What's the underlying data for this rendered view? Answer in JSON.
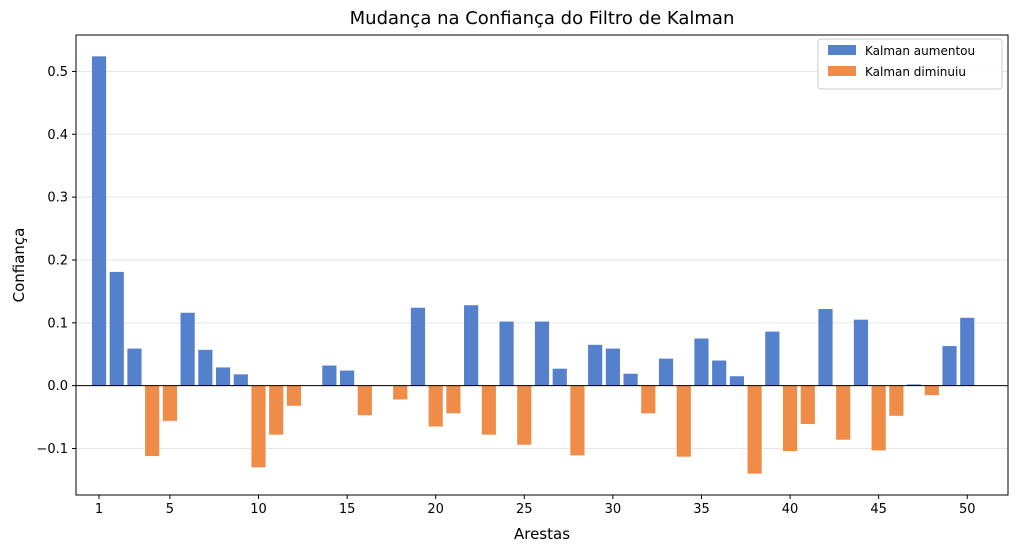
{
  "chart_data": {
    "type": "bar",
    "title": "Mudança na Confiança do Filtro de Kalman",
    "xlabel": "Arestas",
    "ylabel": "Confiança",
    "x": [
      1,
      2,
      3,
      4,
      5,
      6,
      7,
      8,
      9,
      10,
      11,
      12,
      13,
      14,
      15,
      16,
      17,
      18,
      19,
      20,
      21,
      22,
      23,
      24,
      25,
      26,
      27,
      28,
      29,
      30,
      31,
      32,
      33,
      34,
      35,
      36,
      37,
      38,
      39,
      40,
      41,
      42,
      43,
      44,
      45,
      46,
      47,
      48,
      49,
      50
    ],
    "values": [
      0.524,
      0.181,
      0.059,
      -0.112,
      -0.056,
      0.116,
      0.057,
      0.029,
      0.018,
      -0.13,
      -0.078,
      -0.032,
      0.0,
      0.032,
      0.024,
      -0.047,
      0.0,
      -0.022,
      0.124,
      -0.065,
      -0.044,
      0.128,
      -0.078,
      0.102,
      -0.094,
      0.102,
      0.027,
      -0.111,
      0.065,
      0.059,
      0.019,
      -0.044,
      0.043,
      -0.113,
      0.075,
      0.04,
      0.015,
      -0.14,
      0.086,
      -0.104,
      -0.061,
      0.122,
      -0.086,
      0.105,
      -0.103,
      -0.048,
      0.002,
      -0.015,
      0.063,
      0.108
    ],
    "xticks": [
      1,
      5,
      10,
      15,
      20,
      25,
      30,
      35,
      40,
      45,
      50
    ],
    "xtick_labels": [
      "1",
      "5",
      "10",
      "15",
      "20",
      "25",
      "30",
      "35",
      "40",
      "45",
      "50"
    ],
    "yticks": [
      -0.1,
      0.0,
      0.1,
      0.2,
      0.3,
      0.4,
      0.5
    ],
    "ytick_labels": [
      "−0.1",
      "0.0",
      "0.1",
      "0.2",
      "0.3",
      "0.4",
      "0.5"
    ],
    "xlim": [
      -0.3,
      52.3
    ],
    "ylim": [
      -0.174,
      0.558
    ],
    "grid": "horizontal",
    "legend_position": "top-right",
    "series": [
      {
        "name": "Kalman aumentou",
        "color": "#5580cc"
      },
      {
        "name": "Kalman diminuiu",
        "color": "#ef8c48"
      }
    ]
  }
}
